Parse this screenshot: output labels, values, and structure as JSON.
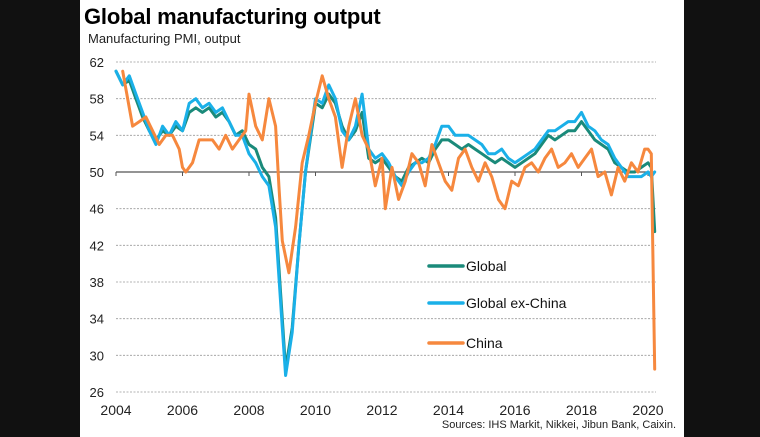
{
  "chart_data": {
    "type": "line",
    "title": "Global manufacturing output",
    "subtitle": "Manufacturing  PMI, output",
    "source": "Sources: IHS Markit, Nikkei, Jibun Bank, Caixin.",
    "xlabel": "",
    "ylabel": "",
    "xlim": [
      2004,
      2020.3
    ],
    "ylim": [
      26,
      62
    ],
    "yticks": [
      62,
      58,
      54,
      50,
      46,
      42,
      38,
      34,
      30,
      26
    ],
    "xticks": [
      "2004",
      "2006",
      "2008",
      "2010",
      "2012",
      "2014",
      "2016",
      "2018",
      "2020"
    ],
    "grid": true,
    "reference_line": 50,
    "legend_position": "center-right",
    "series": [
      {
        "name": "Global",
        "color": "#1a8a7a",
        "points": [
          [
            2004.0,
            61.0
          ],
          [
            2004.2,
            59.5
          ],
          [
            2004.4,
            60.0
          ],
          [
            2004.6,
            58.0
          ],
          [
            2004.8,
            56.0
          ],
          [
            2005.0,
            54.5
          ],
          [
            2005.2,
            53.5
          ],
          [
            2005.4,
            54.5
          ],
          [
            2005.6,
            54.0
          ],
          [
            2005.8,
            55.0
          ],
          [
            2006.0,
            54.5
          ],
          [
            2006.2,
            56.5
          ],
          [
            2006.4,
            57.0
          ],
          [
            2006.6,
            56.5
          ],
          [
            2006.8,
            57.0
          ],
          [
            2007.0,
            56.0
          ],
          [
            2007.2,
            56.5
          ],
          [
            2007.4,
            55.5
          ],
          [
            2007.6,
            54.0
          ],
          [
            2007.8,
            54.5
          ],
          [
            2008.0,
            53.0
          ],
          [
            2008.2,
            52.5
          ],
          [
            2008.4,
            50.5
          ],
          [
            2008.6,
            49.5
          ],
          [
            2008.8,
            45.0
          ],
          [
            2009.0,
            34.0
          ],
          [
            2009.1,
            28.5
          ],
          [
            2009.3,
            33.0
          ],
          [
            2009.5,
            42.0
          ],
          [
            2009.7,
            50.0
          ],
          [
            2009.9,
            55.0
          ],
          [
            2010.0,
            57.5
          ],
          [
            2010.2,
            57.0
          ],
          [
            2010.4,
            58.5
          ],
          [
            2010.6,
            57.5
          ],
          [
            2010.8,
            55.0
          ],
          [
            2011.0,
            53.5
          ],
          [
            2011.2,
            54.5
          ],
          [
            2011.4,
            56.5
          ],
          [
            2011.6,
            51.5
          ],
          [
            2011.8,
            51.0
          ],
          [
            2012.0,
            51.5
          ],
          [
            2012.2,
            50.5
          ],
          [
            2012.4,
            49.5
          ],
          [
            2012.6,
            49.0
          ],
          [
            2012.8,
            50.5
          ],
          [
            2013.0,
            51.0
          ],
          [
            2013.2,
            51.5
          ],
          [
            2013.4,
            51.0
          ],
          [
            2013.6,
            52.5
          ],
          [
            2013.8,
            53.5
          ],
          [
            2014.0,
            53.5
          ],
          [
            2014.2,
            53.0
          ],
          [
            2014.4,
            52.5
          ],
          [
            2014.6,
            53.0
          ],
          [
            2014.8,
            52.5
          ],
          [
            2015.0,
            52.0
          ],
          [
            2015.2,
            51.5
          ],
          [
            2015.4,
            51.0
          ],
          [
            2015.6,
            51.5
          ],
          [
            2015.8,
            51.0
          ],
          [
            2016.0,
            50.5
          ],
          [
            2016.2,
            51.0
          ],
          [
            2016.4,
            51.5
          ],
          [
            2016.6,
            52.0
          ],
          [
            2016.8,
            53.0
          ],
          [
            2017.0,
            54.0
          ],
          [
            2017.2,
            53.5
          ],
          [
            2017.4,
            54.0
          ],
          [
            2017.6,
            54.5
          ],
          [
            2017.8,
            54.5
          ],
          [
            2018.0,
            55.5
          ],
          [
            2018.2,
            54.5
          ],
          [
            2018.4,
            53.5
          ],
          [
            2018.6,
            53.0
          ],
          [
            2018.8,
            52.5
          ],
          [
            2019.0,
            51.0
          ],
          [
            2019.2,
            50.5
          ],
          [
            2019.4,
            50.0
          ],
          [
            2019.6,
            50.0
          ],
          [
            2019.8,
            50.5
          ],
          [
            2020.0,
            51.0
          ],
          [
            2020.1,
            50.5
          ],
          [
            2020.2,
            43.5
          ]
        ]
      },
      {
        "name": "Global ex-China",
        "color": "#1ab0e8",
        "points": [
          [
            2004.0,
            61.0
          ],
          [
            2004.2,
            59.5
          ],
          [
            2004.4,
            60.5
          ],
          [
            2004.6,
            58.5
          ],
          [
            2004.8,
            56.5
          ],
          [
            2005.0,
            54.5
          ],
          [
            2005.2,
            53.0
          ],
          [
            2005.4,
            55.0
          ],
          [
            2005.6,
            54.0
          ],
          [
            2005.8,
            55.5
          ],
          [
            2006.0,
            54.5
          ],
          [
            2006.2,
            57.5
          ],
          [
            2006.4,
            58.0
          ],
          [
            2006.6,
            57.0
          ],
          [
            2006.8,
            57.5
          ],
          [
            2007.0,
            56.5
          ],
          [
            2007.2,
            57.0
          ],
          [
            2007.4,
            55.5
          ],
          [
            2007.6,
            54.0
          ],
          [
            2007.8,
            54.0
          ],
          [
            2008.0,
            52.0
          ],
          [
            2008.2,
            51.0
          ],
          [
            2008.4,
            49.5
          ],
          [
            2008.6,
            48.5
          ],
          [
            2008.8,
            44.0
          ],
          [
            2009.0,
            33.0
          ],
          [
            2009.1,
            27.8
          ],
          [
            2009.3,
            32.5
          ],
          [
            2009.5,
            42.0
          ],
          [
            2009.7,
            50.0
          ],
          [
            2009.9,
            55.5
          ],
          [
            2010.0,
            58.0
          ],
          [
            2010.2,
            57.5
          ],
          [
            2010.4,
            59.5
          ],
          [
            2010.6,
            58.0
          ],
          [
            2010.8,
            54.5
          ],
          [
            2011.0,
            53.5
          ],
          [
            2011.2,
            55.0
          ],
          [
            2011.4,
            58.5
          ],
          [
            2011.6,
            52.5
          ],
          [
            2011.8,
            51.5
          ],
          [
            2012.0,
            52.0
          ],
          [
            2012.2,
            51.0
          ],
          [
            2012.4,
            49.5
          ],
          [
            2012.6,
            48.5
          ],
          [
            2012.8,
            50.0
          ],
          [
            2013.0,
            51.0
          ],
          [
            2013.2,
            51.0
          ],
          [
            2013.4,
            51.5
          ],
          [
            2013.6,
            53.0
          ],
          [
            2013.8,
            55.0
          ],
          [
            2014.0,
            55.0
          ],
          [
            2014.2,
            54.0
          ],
          [
            2014.4,
            54.0
          ],
          [
            2014.6,
            54.0
          ],
          [
            2014.8,
            53.5
          ],
          [
            2015.0,
            53.0
          ],
          [
            2015.2,
            52.0
          ],
          [
            2015.4,
            52.0
          ],
          [
            2015.6,
            52.5
          ],
          [
            2015.8,
            51.5
          ],
          [
            2016.0,
            51.0
          ],
          [
            2016.2,
            51.5
          ],
          [
            2016.4,
            52.0
          ],
          [
            2016.6,
            52.5
          ],
          [
            2016.8,
            53.5
          ],
          [
            2017.0,
            54.5
          ],
          [
            2017.2,
            54.5
          ],
          [
            2017.4,
            55.0
          ],
          [
            2017.6,
            55.5
          ],
          [
            2017.8,
            55.5
          ],
          [
            2018.0,
            56.5
          ],
          [
            2018.2,
            55.0
          ],
          [
            2018.4,
            54.5
          ],
          [
            2018.6,
            53.5
          ],
          [
            2018.8,
            53.0
          ],
          [
            2019.0,
            51.5
          ],
          [
            2019.2,
            50.5
          ],
          [
            2019.4,
            49.5
          ],
          [
            2019.6,
            49.5
          ],
          [
            2019.8,
            49.5
          ],
          [
            2020.0,
            50.0
          ],
          [
            2020.1,
            49.5
          ],
          [
            2020.2,
            50.0
          ]
        ]
      },
      {
        "name": "China",
        "color": "#f6883e",
        "points": [
          [
            2004.2,
            61.0
          ],
          [
            2004.4,
            57.0
          ],
          [
            2004.5,
            55.0
          ],
          [
            2004.7,
            55.5
          ],
          [
            2004.9,
            56.0
          ],
          [
            2005.1,
            54.5
          ],
          [
            2005.3,
            53.0
          ],
          [
            2005.5,
            54.0
          ],
          [
            2005.7,
            54.0
          ],
          [
            2005.9,
            52.5
          ],
          [
            2006.0,
            50.5
          ],
          [
            2006.1,
            50.0
          ],
          [
            2006.3,
            51.0
          ],
          [
            2006.5,
            53.5
          ],
          [
            2006.7,
            53.5
          ],
          [
            2006.9,
            53.5
          ],
          [
            2007.1,
            52.5
          ],
          [
            2007.3,
            54.0
          ],
          [
            2007.5,
            52.5
          ],
          [
            2007.7,
            53.5
          ],
          [
            2007.9,
            54.5
          ],
          [
            2008.0,
            58.5
          ],
          [
            2008.2,
            55.0
          ],
          [
            2008.4,
            53.5
          ],
          [
            2008.6,
            58.0
          ],
          [
            2008.8,
            55.0
          ],
          [
            2008.9,
            48.5
          ],
          [
            2009.0,
            42.5
          ],
          [
            2009.2,
            39.0
          ],
          [
            2009.4,
            44.0
          ],
          [
            2009.6,
            51.0
          ],
          [
            2009.8,
            54.0
          ],
          [
            2010.0,
            57.5
          ],
          [
            2010.2,
            60.5
          ],
          [
            2010.4,
            58.0
          ],
          [
            2010.6,
            56.0
          ],
          [
            2010.8,
            50.5
          ],
          [
            2011.0,
            55.0
          ],
          [
            2011.2,
            58.0
          ],
          [
            2011.4,
            54.0
          ],
          [
            2011.6,
            52.5
          ],
          [
            2011.8,
            48.5
          ],
          [
            2012.0,
            51.5
          ],
          [
            2012.1,
            46.0
          ],
          [
            2012.3,
            50.5
          ],
          [
            2012.5,
            47.0
          ],
          [
            2012.7,
            49.0
          ],
          [
            2012.9,
            52.0
          ],
          [
            2013.1,
            51.0
          ],
          [
            2013.3,
            48.5
          ],
          [
            2013.5,
            53.0
          ],
          [
            2013.7,
            51.0
          ],
          [
            2013.9,
            49.0
          ],
          [
            2014.1,
            48.0
          ],
          [
            2014.3,
            51.5
          ],
          [
            2014.5,
            52.5
          ],
          [
            2014.7,
            50.5
          ],
          [
            2014.9,
            49.0
          ],
          [
            2015.1,
            51.0
          ],
          [
            2015.3,
            49.5
          ],
          [
            2015.5,
            47.0
          ],
          [
            2015.7,
            46.0
          ],
          [
            2015.9,
            49.0
          ],
          [
            2016.1,
            48.5
          ],
          [
            2016.3,
            50.5
          ],
          [
            2016.5,
            51.0
          ],
          [
            2016.7,
            50.0
          ],
          [
            2016.9,
            51.5
          ],
          [
            2017.1,
            52.5
          ],
          [
            2017.3,
            50.5
          ],
          [
            2017.5,
            51.0
          ],
          [
            2017.7,
            52.0
          ],
          [
            2017.9,
            50.5
          ],
          [
            2018.1,
            51.5
          ],
          [
            2018.3,
            52.5
          ],
          [
            2018.5,
            49.5
          ],
          [
            2018.7,
            50.0
          ],
          [
            2018.9,
            47.5
          ],
          [
            2019.1,
            50.5
          ],
          [
            2019.3,
            49.0
          ],
          [
            2019.5,
            51.0
          ],
          [
            2019.7,
            50.0
          ],
          [
            2019.9,
            52.5
          ],
          [
            2020.0,
            52.5
          ],
          [
            2020.1,
            52.0
          ],
          [
            2020.2,
            28.5
          ]
        ]
      }
    ]
  }
}
